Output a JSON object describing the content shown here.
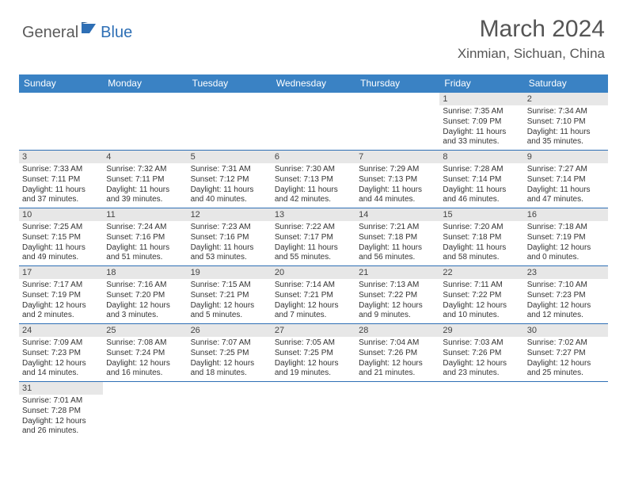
{
  "brand": {
    "part1": "General",
    "part2": "Blue"
  },
  "title": "March 2024",
  "location": "Xinmian, Sichuan, China",
  "colors": {
    "header_bg": "#3a82c4",
    "header_fg": "#ffffff",
    "daynum_bg": "#e7e7e7",
    "row_divider": "#2e6fb5",
    "brand_blue": "#2e6fb5",
    "text": "#333333"
  },
  "typography": {
    "title_fontsize": 30,
    "location_fontsize": 17,
    "day_header_fontsize": 12,
    "daynum_fontsize": 11,
    "cell_fontsize": 10
  },
  "day_names": [
    "Sunday",
    "Monday",
    "Tuesday",
    "Wednesday",
    "Thursday",
    "Friday",
    "Saturday"
  ],
  "weeks": [
    [
      null,
      null,
      null,
      null,
      null,
      {
        "n": "1",
        "sr": "Sunrise: 7:35 AM",
        "ss": "Sunset: 7:09 PM",
        "d1": "Daylight: 11 hours",
        "d2": "and 33 minutes."
      },
      {
        "n": "2",
        "sr": "Sunrise: 7:34 AM",
        "ss": "Sunset: 7:10 PM",
        "d1": "Daylight: 11 hours",
        "d2": "and 35 minutes."
      }
    ],
    [
      {
        "n": "3",
        "sr": "Sunrise: 7:33 AM",
        "ss": "Sunset: 7:11 PM",
        "d1": "Daylight: 11 hours",
        "d2": "and 37 minutes."
      },
      {
        "n": "4",
        "sr": "Sunrise: 7:32 AM",
        "ss": "Sunset: 7:11 PM",
        "d1": "Daylight: 11 hours",
        "d2": "and 39 minutes."
      },
      {
        "n": "5",
        "sr": "Sunrise: 7:31 AM",
        "ss": "Sunset: 7:12 PM",
        "d1": "Daylight: 11 hours",
        "d2": "and 40 minutes."
      },
      {
        "n": "6",
        "sr": "Sunrise: 7:30 AM",
        "ss": "Sunset: 7:13 PM",
        "d1": "Daylight: 11 hours",
        "d2": "and 42 minutes."
      },
      {
        "n": "7",
        "sr": "Sunrise: 7:29 AM",
        "ss": "Sunset: 7:13 PM",
        "d1": "Daylight: 11 hours",
        "d2": "and 44 minutes."
      },
      {
        "n": "8",
        "sr": "Sunrise: 7:28 AM",
        "ss": "Sunset: 7:14 PM",
        "d1": "Daylight: 11 hours",
        "d2": "and 46 minutes."
      },
      {
        "n": "9",
        "sr": "Sunrise: 7:27 AM",
        "ss": "Sunset: 7:14 PM",
        "d1": "Daylight: 11 hours",
        "d2": "and 47 minutes."
      }
    ],
    [
      {
        "n": "10",
        "sr": "Sunrise: 7:25 AM",
        "ss": "Sunset: 7:15 PM",
        "d1": "Daylight: 11 hours",
        "d2": "and 49 minutes."
      },
      {
        "n": "11",
        "sr": "Sunrise: 7:24 AM",
        "ss": "Sunset: 7:16 PM",
        "d1": "Daylight: 11 hours",
        "d2": "and 51 minutes."
      },
      {
        "n": "12",
        "sr": "Sunrise: 7:23 AM",
        "ss": "Sunset: 7:16 PM",
        "d1": "Daylight: 11 hours",
        "d2": "and 53 minutes."
      },
      {
        "n": "13",
        "sr": "Sunrise: 7:22 AM",
        "ss": "Sunset: 7:17 PM",
        "d1": "Daylight: 11 hours",
        "d2": "and 55 minutes."
      },
      {
        "n": "14",
        "sr": "Sunrise: 7:21 AM",
        "ss": "Sunset: 7:18 PM",
        "d1": "Daylight: 11 hours",
        "d2": "and 56 minutes."
      },
      {
        "n": "15",
        "sr": "Sunrise: 7:20 AM",
        "ss": "Sunset: 7:18 PM",
        "d1": "Daylight: 11 hours",
        "d2": "and 58 minutes."
      },
      {
        "n": "16",
        "sr": "Sunrise: 7:18 AM",
        "ss": "Sunset: 7:19 PM",
        "d1": "Daylight: 12 hours",
        "d2": "and 0 minutes."
      }
    ],
    [
      {
        "n": "17",
        "sr": "Sunrise: 7:17 AM",
        "ss": "Sunset: 7:19 PM",
        "d1": "Daylight: 12 hours",
        "d2": "and 2 minutes."
      },
      {
        "n": "18",
        "sr": "Sunrise: 7:16 AM",
        "ss": "Sunset: 7:20 PM",
        "d1": "Daylight: 12 hours",
        "d2": "and 3 minutes."
      },
      {
        "n": "19",
        "sr": "Sunrise: 7:15 AM",
        "ss": "Sunset: 7:21 PM",
        "d1": "Daylight: 12 hours",
        "d2": "and 5 minutes."
      },
      {
        "n": "20",
        "sr": "Sunrise: 7:14 AM",
        "ss": "Sunset: 7:21 PM",
        "d1": "Daylight: 12 hours",
        "d2": "and 7 minutes."
      },
      {
        "n": "21",
        "sr": "Sunrise: 7:13 AM",
        "ss": "Sunset: 7:22 PM",
        "d1": "Daylight: 12 hours",
        "d2": "and 9 minutes."
      },
      {
        "n": "22",
        "sr": "Sunrise: 7:11 AM",
        "ss": "Sunset: 7:22 PM",
        "d1": "Daylight: 12 hours",
        "d2": "and 10 minutes."
      },
      {
        "n": "23",
        "sr": "Sunrise: 7:10 AM",
        "ss": "Sunset: 7:23 PM",
        "d1": "Daylight: 12 hours",
        "d2": "and 12 minutes."
      }
    ],
    [
      {
        "n": "24",
        "sr": "Sunrise: 7:09 AM",
        "ss": "Sunset: 7:23 PM",
        "d1": "Daylight: 12 hours",
        "d2": "and 14 minutes."
      },
      {
        "n": "25",
        "sr": "Sunrise: 7:08 AM",
        "ss": "Sunset: 7:24 PM",
        "d1": "Daylight: 12 hours",
        "d2": "and 16 minutes."
      },
      {
        "n": "26",
        "sr": "Sunrise: 7:07 AM",
        "ss": "Sunset: 7:25 PM",
        "d1": "Daylight: 12 hours",
        "d2": "and 18 minutes."
      },
      {
        "n": "27",
        "sr": "Sunrise: 7:05 AM",
        "ss": "Sunset: 7:25 PM",
        "d1": "Daylight: 12 hours",
        "d2": "and 19 minutes."
      },
      {
        "n": "28",
        "sr": "Sunrise: 7:04 AM",
        "ss": "Sunset: 7:26 PM",
        "d1": "Daylight: 12 hours",
        "d2": "and 21 minutes."
      },
      {
        "n": "29",
        "sr": "Sunrise: 7:03 AM",
        "ss": "Sunset: 7:26 PM",
        "d1": "Daylight: 12 hours",
        "d2": "and 23 minutes."
      },
      {
        "n": "30",
        "sr": "Sunrise: 7:02 AM",
        "ss": "Sunset: 7:27 PM",
        "d1": "Daylight: 12 hours",
        "d2": "and 25 minutes."
      }
    ],
    [
      {
        "n": "31",
        "sr": "Sunrise: 7:01 AM",
        "ss": "Sunset: 7:28 PM",
        "d1": "Daylight: 12 hours",
        "d2": "and 26 minutes."
      },
      null,
      null,
      null,
      null,
      null,
      null
    ]
  ]
}
